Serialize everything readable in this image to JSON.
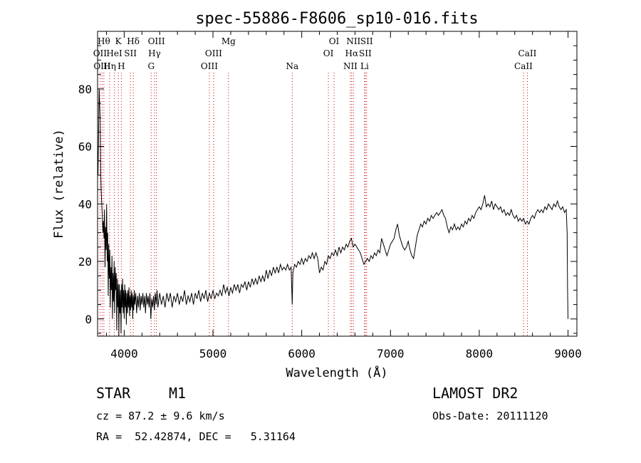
{
  "chart_data": {
    "type": "line",
    "title": "spec-55886-F8606_sp10-016.fits",
    "xlabel": "Wavelength (Å)",
    "ylabel": "Flux (relative)",
    "xlim": [
      3700,
      9100
    ],
    "ylim": [
      -6,
      100
    ],
    "x_ticks": [
      4000,
      5000,
      6000,
      7000,
      8000,
      9000
    ],
    "x_tick_labels": [
      "4000",
      "5000",
      "6000",
      "7000",
      "8000",
      "9000"
    ],
    "y_ticks": [
      0,
      20,
      40,
      60,
      80
    ],
    "y_tick_labels": [
      "0",
      "20",
      "40",
      "60",
      "80"
    ],
    "grid": false,
    "line_color": "#000000",
    "marker_color": "#cc0000",
    "spectrum": [
      [
        3705,
        50
      ],
      [
        3712,
        66
      ],
      [
        3718,
        80
      ],
      [
        3724,
        74
      ],
      [
        3730,
        70
      ],
      [
        3736,
        50
      ],
      [
        3742,
        44
      ],
      [
        3748,
        39
      ],
      [
        3754,
        36
      ],
      [
        3760,
        30
      ],
      [
        3766,
        34
      ],
      [
        3772,
        28
      ],
      [
        3778,
        38
      ],
      [
        3784,
        18
      ],
      [
        3790,
        32
      ],
      [
        3796,
        24
      ],
      [
        3802,
        40
      ],
      [
        3808,
        20
      ],
      [
        3814,
        30
      ],
      [
        3820,
        8
      ],
      [
        3826,
        26
      ],
      [
        3832,
        14
      ],
      [
        3838,
        24
      ],
      [
        3844,
        4
      ],
      [
        3850,
        18
      ],
      [
        3856,
        10
      ],
      [
        3862,
        22
      ],
      [
        3868,
        0
      ],
      [
        3874,
        16
      ],
      [
        3880,
        6
      ],
      [
        3886,
        20
      ],
      [
        3892,
        2
      ],
      [
        3898,
        18
      ],
      [
        3904,
        10
      ],
      [
        3910,
        16
      ],
      [
        3916,
        -4
      ],
      [
        3922,
        14
      ],
      [
        3928,
        4
      ],
      [
        3934,
        12
      ],
      [
        3940,
        -6
      ],
      [
        3946,
        12
      ],
      [
        3952,
        2
      ],
      [
        3958,
        10
      ],
      [
        3964,
        -5
      ],
      [
        3970,
        12
      ],
      [
        3976,
        4
      ],
      [
        3982,
        14
      ],
      [
        3988,
        2
      ],
      [
        3994,
        10
      ],
      [
        4000,
        0
      ],
      [
        4006,
        12
      ],
      [
        4012,
        4
      ],
      [
        4018,
        10
      ],
      [
        4024,
        -2
      ],
      [
        4030,
        9
      ],
      [
        4036,
        2
      ],
      [
        4042,
        10
      ],
      [
        4048,
        4
      ],
      [
        4054,
        11
      ],
      [
        4060,
        1
      ],
      [
        4066,
        8
      ],
      [
        4072,
        3
      ],
      [
        4078,
        10
      ],
      [
        4084,
        4
      ],
      [
        4090,
        9
      ],
      [
        4096,
        0
      ],
      [
        4102,
        8
      ],
      [
        4108,
        3
      ],
      [
        4114,
        10
      ],
      [
        4120,
        5
      ],
      [
        4130,
        9
      ],
      [
        4140,
        2
      ],
      [
        4150,
        8
      ],
      [
        4160,
        4
      ],
      [
        4170,
        9
      ],
      [
        4180,
        3
      ],
      [
        4190,
        8
      ],
      [
        4200,
        5
      ],
      [
        4210,
        9
      ],
      [
        4220,
        4
      ],
      [
        4230,
        8
      ],
      [
        4240,
        2
      ],
      [
        4250,
        9
      ],
      [
        4260,
        5
      ],
      [
        4270,
        8
      ],
      [
        4280,
        4
      ],
      [
        4290,
        9
      ],
      [
        4300,
        0
      ],
      [
        4310,
        7
      ],
      [
        4320,
        4
      ],
      [
        4330,
        8
      ],
      [
        4340,
        3
      ],
      [
        4350,
        9
      ],
      [
        4360,
        5
      ],
      [
        4370,
        10
      ],
      [
        4380,
        4
      ],
      [
        4400,
        9
      ],
      [
        4420,
        5
      ],
      [
        4440,
        8
      ],
      [
        4460,
        4
      ],
      [
        4480,
        9
      ],
      [
        4500,
        6
      ],
      [
        4520,
        9
      ],
      [
        4540,
        4
      ],
      [
        4560,
        8
      ],
      [
        4580,
        6
      ],
      [
        4600,
        9
      ],
      [
        4620,
        5
      ],
      [
        4640,
        8
      ],
      [
        4660,
        6
      ],
      [
        4680,
        10
      ],
      [
        4700,
        5
      ],
      [
        4720,
        8
      ],
      [
        4740,
        6
      ],
      [
        4760,
        9
      ],
      [
        4780,
        5
      ],
      [
        4800,
        9
      ],
      [
        4820,
        7
      ],
      [
        4840,
        10
      ],
      [
        4860,
        6
      ],
      [
        4880,
        9
      ],
      [
        4900,
        7
      ],
      [
        4920,
        10
      ],
      [
        4940,
        6
      ],
      [
        4960,
        9
      ],
      [
        4980,
        7
      ],
      [
        5000,
        10
      ],
      [
        5020,
        7
      ],
      [
        5040,
        9
      ],
      [
        5060,
        8
      ],
      [
        5080,
        10
      ],
      [
        5100,
        8
      ],
      [
        5120,
        12
      ],
      [
        5140,
        9
      ],
      [
        5160,
        11
      ],
      [
        5180,
        8
      ],
      [
        5200,
        11
      ],
      [
        5220,
        9
      ],
      [
        5240,
        12
      ],
      [
        5260,
        10
      ],
      [
        5280,
        12
      ],
      [
        5300,
        9
      ],
      [
        5320,
        12
      ],
      [
        5340,
        11
      ],
      [
        5360,
        13
      ],
      [
        5380,
        10
      ],
      [
        5400,
        13
      ],
      [
        5420,
        11
      ],
      [
        5440,
        14
      ],
      [
        5460,
        12
      ],
      [
        5480,
        14
      ],
      [
        5500,
        12
      ],
      [
        5520,
        15
      ],
      [
        5540,
        13
      ],
      [
        5560,
        15
      ],
      [
        5580,
        13
      ],
      [
        5600,
        17
      ],
      [
        5620,
        14
      ],
      [
        5640,
        17
      ],
      [
        5660,
        15
      ],
      [
        5680,
        18
      ],
      [
        5700,
        16
      ],
      [
        5720,
        18
      ],
      [
        5740,
        16
      ],
      [
        5760,
        19
      ],
      [
        5780,
        17
      ],
      [
        5800,
        18
      ],
      [
        5820,
        17
      ],
      [
        5840,
        19
      ],
      [
        5860,
        17
      ],
      [
        5880,
        18
      ],
      [
        5893,
        5
      ],
      [
        5900,
        16
      ],
      [
        5920,
        19
      ],
      [
        5940,
        18
      ],
      [
        5960,
        20
      ],
      [
        5980,
        19
      ],
      [
        6000,
        21
      ],
      [
        6020,
        19
      ],
      [
        6040,
        21
      ],
      [
        6060,
        20
      ],
      [
        6080,
        22
      ],
      [
        6100,
        21
      ],
      [
        6120,
        23
      ],
      [
        6140,
        21
      ],
      [
        6160,
        23
      ],
      [
        6180,
        21
      ],
      [
        6200,
        16
      ],
      [
        6220,
        18
      ],
      [
        6240,
        17
      ],
      [
        6260,
        20
      ],
      [
        6280,
        19
      ],
      [
        6300,
        22
      ],
      [
        6320,
        21
      ],
      [
        6340,
        23
      ],
      [
        6360,
        22
      ],
      [
        6380,
        24
      ],
      [
        6400,
        22
      ],
      [
        6420,
        25
      ],
      [
        6440,
        23
      ],
      [
        6460,
        25
      ],
      [
        6480,
        24
      ],
      [
        6500,
        26
      ],
      [
        6520,
        25
      ],
      [
        6540,
        27
      ],
      [
        6560,
        28
      ],
      [
        6580,
        25
      ],
      [
        6600,
        26
      ],
      [
        6620,
        25
      ],
      [
        6640,
        24
      ],
      [
        6660,
        23
      ],
      [
        6680,
        21
      ],
      [
        6700,
        19
      ],
      [
        6720,
        20
      ],
      [
        6740,
        21
      ],
      [
        6760,
        20
      ],
      [
        6780,
        22
      ],
      [
        6800,
        21
      ],
      [
        6820,
        23
      ],
      [
        6840,
        22
      ],
      [
        6860,
        24
      ],
      [
        6880,
        23
      ],
      [
        6900,
        28
      ],
      [
        6920,
        26
      ],
      [
        6940,
        24
      ],
      [
        6960,
        22
      ],
      [
        6980,
        24
      ],
      [
        7000,
        26
      ],
      [
        7020,
        27
      ],
      [
        7040,
        28
      ],
      [
        7060,
        31
      ],
      [
        7080,
        33
      ],
      [
        7100,
        29
      ],
      [
        7120,
        27
      ],
      [
        7140,
        25
      ],
      [
        7160,
        24
      ],
      [
        7180,
        25
      ],
      [
        7200,
        27
      ],
      [
        7220,
        24
      ],
      [
        7240,
        22
      ],
      [
        7260,
        21
      ],
      [
        7280,
        25
      ],
      [
        7300,
        29
      ],
      [
        7320,
        31
      ],
      [
        7340,
        33
      ],
      [
        7360,
        32
      ],
      [
        7380,
        34
      ],
      [
        7400,
        33
      ],
      [
        7420,
        35
      ],
      [
        7440,
        34
      ],
      [
        7460,
        36
      ],
      [
        7480,
        35
      ],
      [
        7500,
        36
      ],
      [
        7520,
        37
      ],
      [
        7540,
        36
      ],
      [
        7560,
        37
      ],
      [
        7580,
        38
      ],
      [
        7600,
        36
      ],
      [
        7620,
        35
      ],
      [
        7640,
        32
      ],
      [
        7660,
        30
      ],
      [
        7680,
        32
      ],
      [
        7700,
        31
      ],
      [
        7720,
        33
      ],
      [
        7740,
        31
      ],
      [
        7760,
        32
      ],
      [
        7780,
        31
      ],
      [
        7800,
        33
      ],
      [
        7820,
        32
      ],
      [
        7840,
        34
      ],
      [
        7860,
        33
      ],
      [
        7880,
        35
      ],
      [
        7900,
        34
      ],
      [
        7920,
        36
      ],
      [
        7940,
        35
      ],
      [
        7960,
        37
      ],
      [
        7980,
        38
      ],
      [
        8000,
        39
      ],
      [
        8020,
        38
      ],
      [
        8040,
        40
      ],
      [
        8060,
        43
      ],
      [
        8080,
        39
      ],
      [
        8100,
        40
      ],
      [
        8120,
        39
      ],
      [
        8140,
        41
      ],
      [
        8160,
        38
      ],
      [
        8180,
        40
      ],
      [
        8200,
        39
      ],
      [
        8220,
        38
      ],
      [
        8240,
        39
      ],
      [
        8260,
        37
      ],
      [
        8280,
        38
      ],
      [
        8300,
        36
      ],
      [
        8320,
        37
      ],
      [
        8340,
        36
      ],
      [
        8360,
        38
      ],
      [
        8380,
        36
      ],
      [
        8400,
        35
      ],
      [
        8420,
        36
      ],
      [
        8440,
        34
      ],
      [
        8460,
        35
      ],
      [
        8480,
        34
      ],
      [
        8500,
        35
      ],
      [
        8520,
        33
      ],
      [
        8540,
        34
      ],
      [
        8560,
        33
      ],
      [
        8580,
        35
      ],
      [
        8600,
        36
      ],
      [
        8620,
        35
      ],
      [
        8640,
        37
      ],
      [
        8660,
        38
      ],
      [
        8680,
        37
      ],
      [
        8700,
        38
      ],
      [
        8720,
        37
      ],
      [
        8740,
        39
      ],
      [
        8760,
        38
      ],
      [
        8780,
        40
      ],
      [
        8800,
        39
      ],
      [
        8820,
        38
      ],
      [
        8840,
        40
      ],
      [
        8860,
        39
      ],
      [
        8880,
        41
      ],
      [
        8900,
        39
      ],
      [
        8920,
        38
      ],
      [
        8940,
        39
      ],
      [
        8960,
        37
      ],
      [
        8980,
        38
      ],
      [
        8990,
        30
      ],
      [
        8995,
        10
      ],
      [
        9000,
        0
      ]
    ],
    "line_markers": [
      {
        "x": 3727,
        "label": "OII",
        "row": 2
      },
      {
        "x": 3751,
        "label": "OIII",
        "row": 3
      },
      {
        "x": 3771,
        "label": "Hθ",
        "row": 1
      },
      {
        "x": 3836,
        "label": "Hη",
        "row": 3
      },
      {
        "x": 3889,
        "label": "HeI",
        "row": 2
      },
      {
        "x": 3934,
        "label": "K",
        "row": 1
      },
      {
        "x": 3968,
        "label": "H",
        "row": 3
      },
      {
        "x": 4070,
        "label": "SII",
        "row": 2
      },
      {
        "x": 4102,
        "label": "Hδ",
        "row": 1
      },
      {
        "x": 4304,
        "label": "G",
        "row": 3
      },
      {
        "x": 4341,
        "label": "Hγ",
        "row": 2
      },
      {
        "x": 4363,
        "label": "OIII",
        "row": 1
      },
      {
        "x": 4959,
        "label": "OIII",
        "row": 3
      },
      {
        "x": 5007,
        "label": "OIII",
        "row": 2
      },
      {
        "x": 5175,
        "label": "Mg",
        "row": 1
      },
      {
        "x": 5893,
        "label": "Na",
        "row": 3
      },
      {
        "x": 6300,
        "label": "OI",
        "row": 2
      },
      {
        "x": 6364,
        "label": "OI",
        "row": 1
      },
      {
        "x": 6548,
        "label": "NII",
        "row": 3
      },
      {
        "x": 6563,
        "label": "Hα",
        "row": 2
      },
      {
        "x": 6583,
        "label": "NII",
        "row": 1
      },
      {
        "x": 6708,
        "label": "Li",
        "row": 3
      },
      {
        "x": 6716,
        "label": "SII",
        "row": 2
      },
      {
        "x": 6731,
        "label": "SII",
        "row": 1
      },
      {
        "x": 8498,
        "label": "CaII",
        "row": 3
      },
      {
        "x": 8542,
        "label": "CaII",
        "row": 2
      }
    ]
  },
  "info": {
    "object_class": "STAR",
    "subclass": "M1",
    "survey": "LAMOST DR2",
    "redshift": "cz = 87.2 ± 9.6 km/s",
    "obs_date": "Obs-Date: 20111120",
    "coords": "RA =  52.42874, DEC =   5.31164"
  }
}
